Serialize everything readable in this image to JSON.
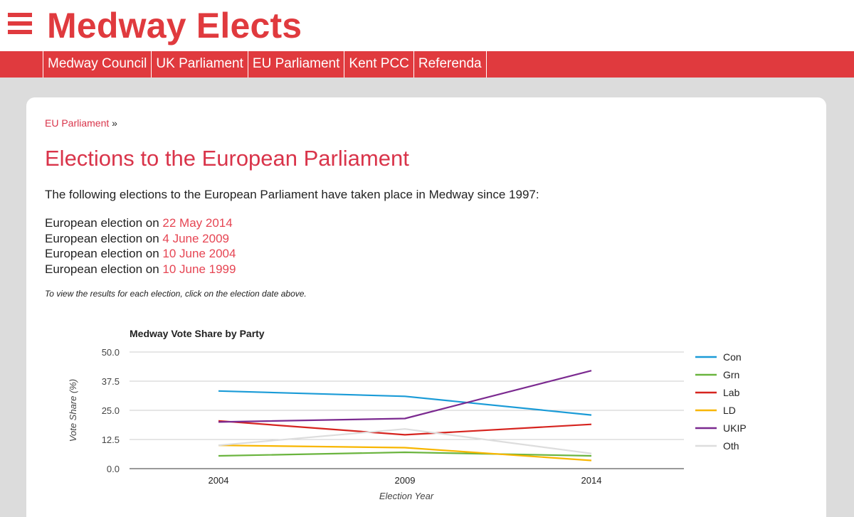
{
  "site": {
    "title": "Medway Elects",
    "accent_color": "#e03a3e",
    "menu_icon": "hamburger-menu-icon"
  },
  "nav": {
    "items": [
      {
        "label": "Medway Council"
      },
      {
        "label": "UK Parliament"
      },
      {
        "label": "EU Parliament"
      },
      {
        "label": "Kent PCC"
      },
      {
        "label": "Referenda"
      }
    ]
  },
  "breadcrumb": {
    "link": "EU Parliament",
    "separator": "»"
  },
  "page": {
    "title": "Elections to the European Parliament",
    "intro": "The following elections to the European Parliament have taken place in Medway since 1997:",
    "election_prefix": "European election on",
    "elections": [
      {
        "date": "22 May 2014"
      },
      {
        "date": "4 June 2009"
      },
      {
        "date": "10 June 2004"
      },
      {
        "date": "10 June 1999"
      }
    ],
    "note": "To view the results for each election, click on the election date above."
  },
  "chart_data": {
    "type": "line",
    "title": "Medway Vote Share by Party",
    "xlabel": "Election Year",
    "ylabel": "Vote Share (%)",
    "x": [
      "2004",
      "2009",
      "2014"
    ],
    "ylim": [
      0,
      50
    ],
    "yticks": [
      "0.0",
      "12.5",
      "25.0",
      "37.5",
      "50.0"
    ],
    "grid": true,
    "legend_position": "right",
    "series": [
      {
        "name": "Con",
        "color": "#1a9bd7",
        "values": [
          33.3,
          31.0,
          23.0
        ]
      },
      {
        "name": "Grn",
        "color": "#6ab43e",
        "values": [
          5.5,
          7.0,
          5.5
        ]
      },
      {
        "name": "Lab",
        "color": "#d6241f",
        "values": [
          20.5,
          14.5,
          19.0
        ]
      },
      {
        "name": "LD",
        "color": "#f8b600",
        "values": [
          10.0,
          9.0,
          3.5
        ]
      },
      {
        "name": "UKIP",
        "color": "#7b2a90",
        "values": [
          20.0,
          21.5,
          42.0
        ]
      },
      {
        "name": "Oth",
        "color": "#dddddd",
        "values": [
          10.0,
          17.0,
          6.5
        ]
      }
    ]
  }
}
